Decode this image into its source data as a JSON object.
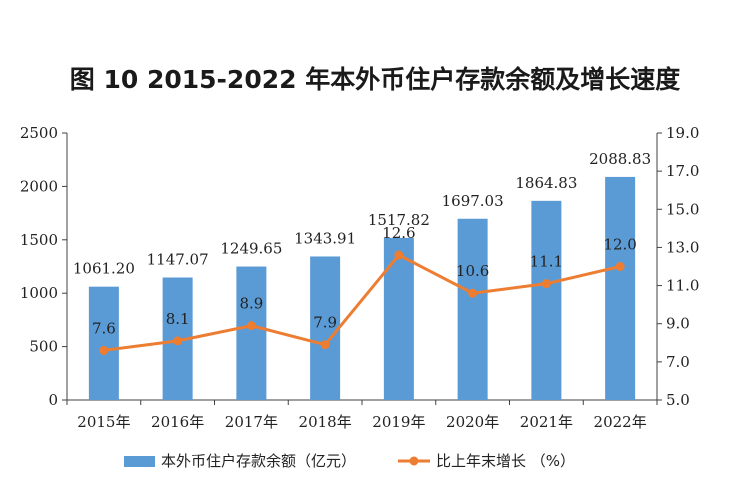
{
  "chart_data": {
    "type": "bar",
    "title": "图 10    2015-2022 年本外币住户存款余额及增长速度",
    "categories": [
      "2015年",
      "2016年",
      "2017年",
      "2018年",
      "2019年",
      "2020年",
      "2021年",
      "2022年"
    ],
    "series": [
      {
        "name": "本外币住户存款余额（亿元）",
        "type": "bar",
        "axis": "left",
        "values": [
          1061.2,
          1147.07,
          1249.65,
          1343.91,
          1517.82,
          1697.03,
          1864.83,
          2088.83
        ],
        "labels": [
          "1061.20",
          "1147.07",
          "1249.65",
          "1343.91",
          "1517.82",
          "1697.03",
          "1864.83",
          "2088.83"
        ],
        "color": "#5b9bd5"
      },
      {
        "name": "比上年末增长 （%）",
        "type": "line",
        "axis": "right",
        "values": [
          7.6,
          8.1,
          8.9,
          7.9,
          12.6,
          10.6,
          11.1,
          12.0
        ],
        "labels": [
          "7.6",
          "8.1",
          "8.9",
          "7.9",
          "12.6",
          "10.6",
          "11.1",
          "12.0"
        ],
        "color": "#ed7d31"
      }
    ],
    "y_left": {
      "min": 0,
      "max": 2500,
      "ticks": [
        "0",
        "500",
        "1000",
        "1500",
        "2000",
        "2500"
      ]
    },
    "y_right": {
      "min": 5.0,
      "max": 19.0,
      "ticks": [
        "5.0",
        "7.0",
        "9.0",
        "11.0",
        "13.0",
        "15.0",
        "17.0",
        "19.0"
      ]
    },
    "grid": false,
    "legend_position": "bottom"
  }
}
